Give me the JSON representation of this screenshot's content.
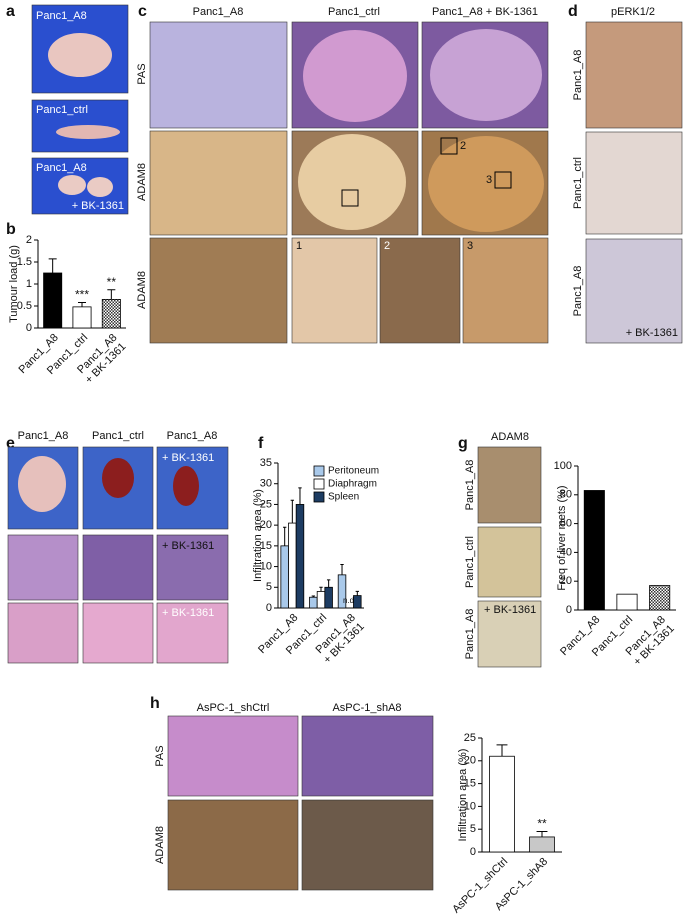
{
  "panel_letters": [
    "a",
    "b",
    "c",
    "d",
    "e",
    "f",
    "g",
    "h"
  ],
  "panel_a": {
    "labels": [
      "Panc1_A8",
      "Panc1_ctrl",
      "Panc1_A8",
      "+ BK-1361"
    ]
  },
  "panel_c": {
    "columns": [
      "Panc1_A8",
      "Panc1_ctrl",
      "Panc1_A8 + BK-1361"
    ],
    "rows": [
      "PAS",
      "ADAM8",
      "ADAM8"
    ],
    "insets_row2": [
      "2",
      "3"
    ],
    "insets_row3": [
      "1",
      "2",
      "3"
    ]
  },
  "panel_d": {
    "title": "pERK1/2",
    "rows": [
      "Panc1_A8",
      "Panc1_ctrl",
      "Panc1_A8"
    ],
    "treatment": "+ BK-1361"
  },
  "panel_e": {
    "columns": [
      "Panc1_A8",
      "Panc1_ctrl",
      "Panc1_A8"
    ],
    "treatment": [
      "+ BK-1361",
      "+ BK-1361",
      "+ BK-1361"
    ]
  },
  "panel_g": {
    "title": "ADAM8",
    "rows": [
      "Panc1_A8",
      "Panc1_ctrl",
      "Panc1_A8"
    ],
    "treatment": "+ BK-1361"
  },
  "panel_h": {
    "columns": [
      "AsPC-1_shCtrl",
      "AsPC-1_shA8"
    ],
    "rows": [
      "PAS",
      "ADAM8"
    ]
  },
  "chart_data": [
    {
      "type": "bar",
      "y_label": "Tumour load (g)",
      "categories": [
        "Panc1_A8",
        "Panc1_ctrl",
        "Panc1_A8\n+ BK-1361"
      ],
      "series": [
        {
          "values": [
            1.25,
            0.48,
            0.65
          ],
          "errors": [
            0.32,
            0.1,
            0.22
          ],
          "colors": [
            "#000000",
            "#ffffff",
            "#555555"
          ],
          "hatched": [
            false,
            false,
            true
          ],
          "significance": [
            null,
            "***",
            "**"
          ]
        }
      ],
      "ylim": [
        0,
        2
      ],
      "yticks": [
        0,
        0.5,
        1,
        1.5,
        2
      ]
    },
    {
      "type": "bar",
      "y_label": "Infiltration area (%)",
      "categories": [
        "Panc1_A8",
        "Panc1_ctrl",
        "Panc1_A8\n+ BK-1361"
      ],
      "series": [
        {
          "name": "Peritoneum",
          "color": "#a9c9ea",
          "values": [
            15,
            2.6,
            8
          ],
          "errors": [
            4.5,
            0.3,
            2.5
          ]
        },
        {
          "name": "Diaphragm",
          "color": "#ffffff",
          "values": [
            20.5,
            4,
            null
          ],
          "errors": [
            5.5,
            1,
            null
          ]
        },
        {
          "name": "Spleen",
          "color": "#1d3c62",
          "values": [
            25,
            5,
            3
          ],
          "errors": [
            4,
            1.8,
            1
          ]
        }
      ],
      "missing_label": "n.d.",
      "ylim": [
        0,
        35
      ],
      "yticks": [
        0,
        5,
        10,
        15,
        20,
        25,
        30,
        35
      ],
      "legend": "upper-right"
    },
    {
      "type": "bar",
      "y_label": "Freq of liver mets (%)",
      "categories": [
        "Panc1_A8",
        "Panc1_ctrl",
        "Panc1_A8\n+ BK-1361"
      ],
      "series": [
        {
          "values": [
            83,
            11,
            17
          ],
          "colors": [
            "#000000",
            "#ffffff",
            "#555555"
          ],
          "hatched": [
            false,
            false,
            true
          ]
        }
      ],
      "ylim": [
        0,
        100
      ],
      "yticks": [
        0,
        20,
        40,
        60,
        80,
        100
      ]
    },
    {
      "type": "bar",
      "y_label": "Infiltration area (%)",
      "categories": [
        "AsPC-1_shCtrl",
        "AsPC-1_shA8"
      ],
      "series": [
        {
          "values": [
            21,
            3.3
          ],
          "errors": [
            2.5,
            1.2
          ],
          "colors": [
            "#ffffff",
            "#c8c8c8"
          ],
          "hatched": [
            false,
            false
          ],
          "significance": [
            null,
            "**"
          ]
        }
      ],
      "ylim": [
        0,
        25
      ],
      "yticks": [
        0,
        5,
        10,
        15,
        20,
        25
      ]
    }
  ]
}
